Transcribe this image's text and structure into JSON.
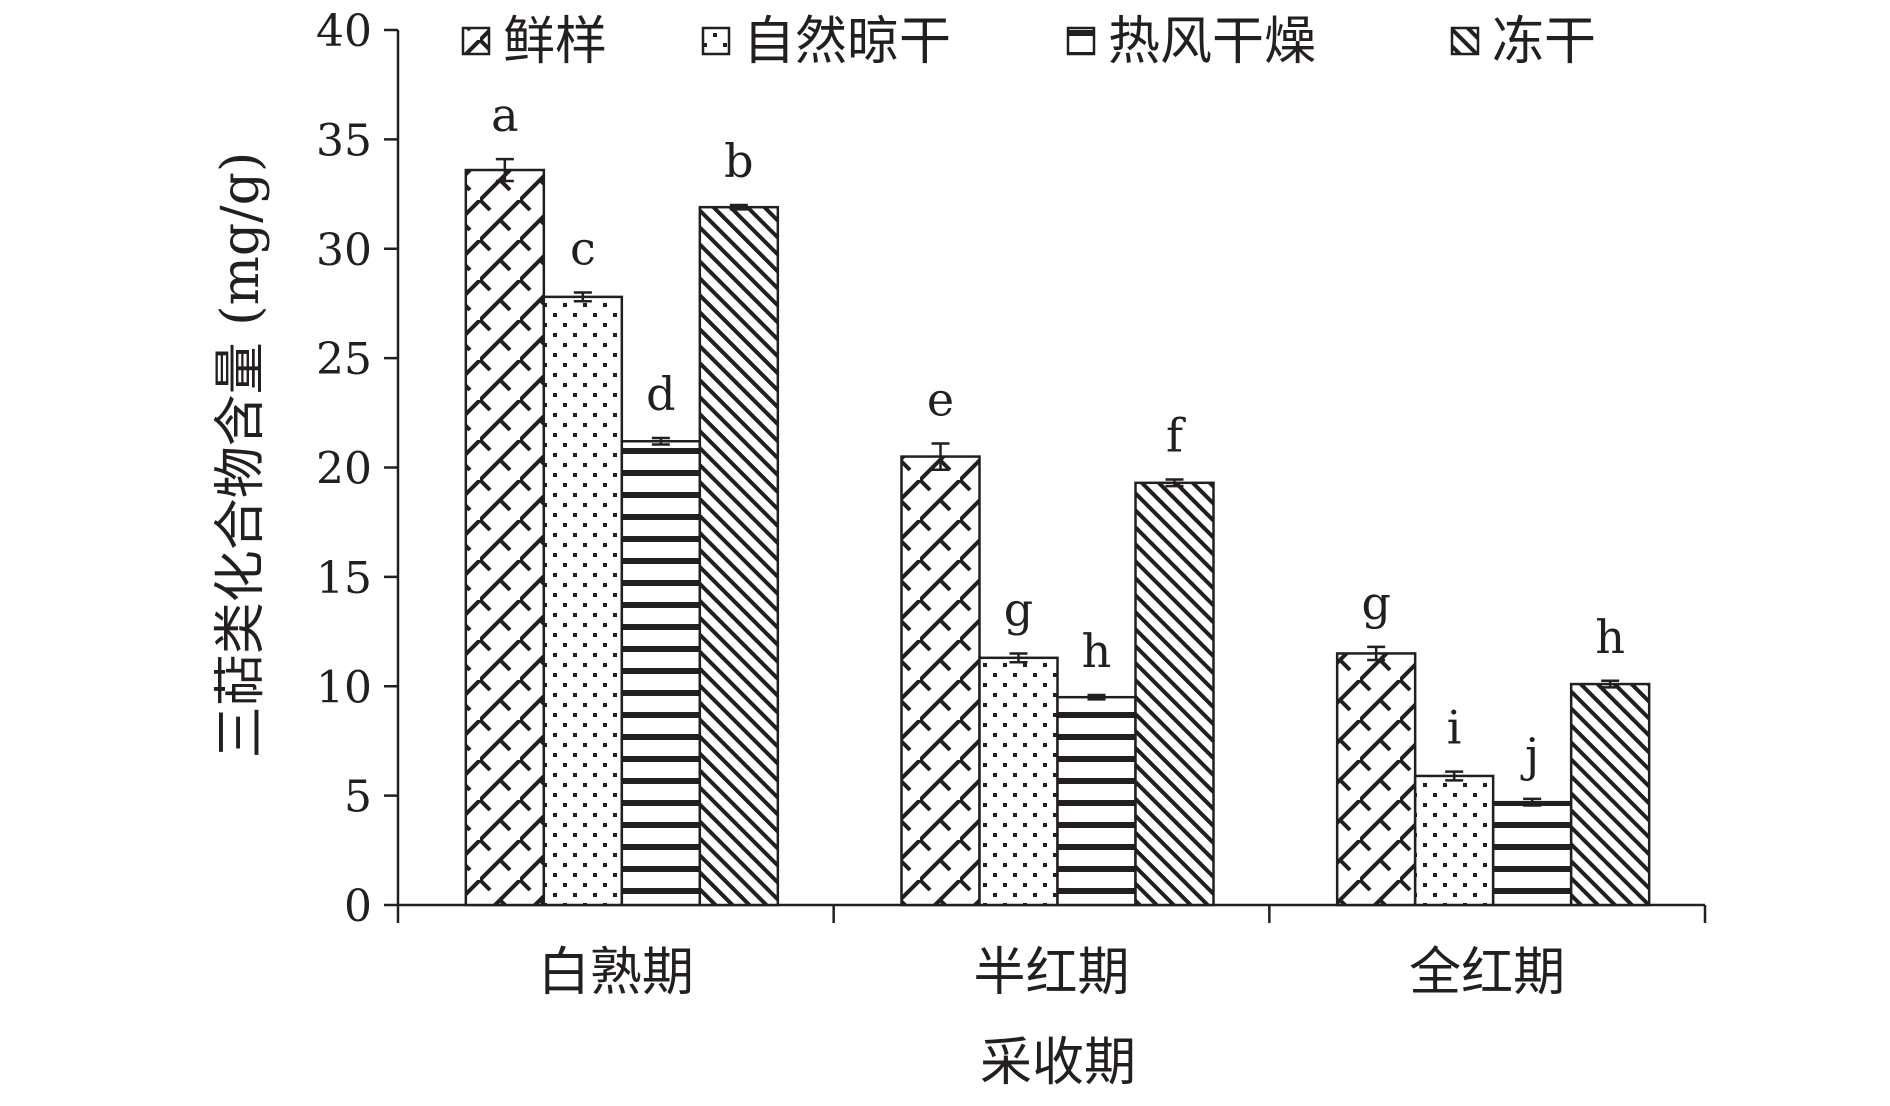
{
  "chart_data": {
    "type": "bar",
    "xlabel": "采收期",
    "ylabel": "三萜类化合物含量 (mg/g)",
    "ylim": [
      0,
      40
    ],
    "yticks": [
      "0",
      "5",
      "10",
      "15",
      "20",
      "25",
      "30",
      "35",
      "40"
    ],
    "categories": [
      "白熟期",
      "半红期",
      "全红期"
    ],
    "legend_position": "top",
    "grid": false,
    "series": [
      {
        "name": "鲜样",
        "pattern": "diamond-hatch",
        "values": [
          33.6,
          20.5,
          11.5
        ],
        "errors": [
          0.5,
          0.6,
          0.3
        ],
        "labels": [
          "a",
          "e",
          "g"
        ]
      },
      {
        "name": "自然晾干",
        "pattern": "dots",
        "values": [
          27.8,
          11.3,
          5.9
        ],
        "errors": [
          0.2,
          0.2,
          0.2
        ],
        "labels": [
          "c",
          "g",
          "i"
        ]
      },
      {
        "name": "热风干燥",
        "pattern": "horizontal-stripes",
        "values": [
          21.2,
          9.5,
          4.7
        ],
        "errors": [
          0.15,
          0.1,
          0.15
        ],
        "labels": [
          "d",
          "h",
          "j"
        ]
      },
      {
        "name": "冻干",
        "pattern": "diagonal-hatch",
        "values": [
          31.9,
          19.3,
          10.1
        ],
        "errors": [
          0.1,
          0.15,
          0.15
        ],
        "labels": [
          "b",
          "f",
          "h"
        ]
      }
    ],
    "colors": {
      "ink": "#231f20",
      "background": "#ffffff"
    }
  }
}
